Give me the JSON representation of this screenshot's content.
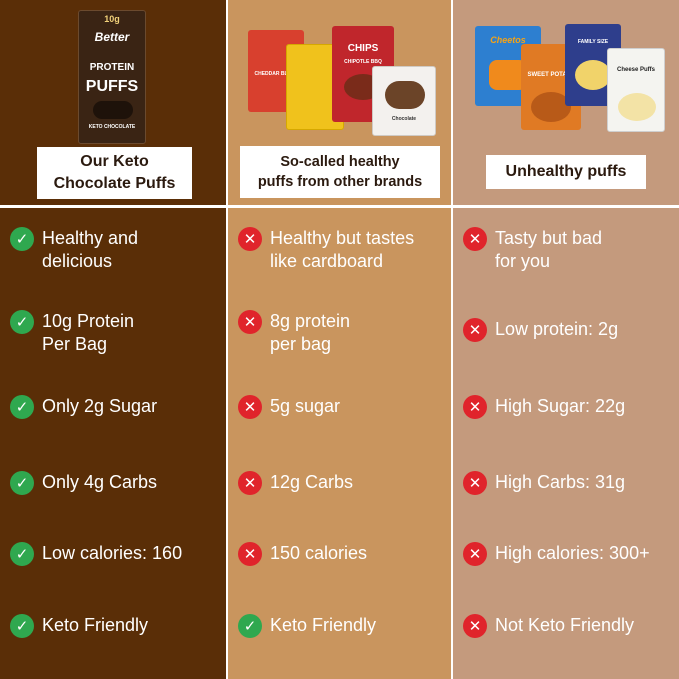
{
  "columns": [
    {
      "heading": "Our Keto\nChocolate Puffs",
      "package": {
        "brand": "Better",
        "badge": "10g",
        "line1": "PROTEIN",
        "line2": "PUFFS",
        "flavor": "KETO CHOCOLATE",
        "color": "#3a2414"
      },
      "rows": [
        {
          "status": "check",
          "text": "Healthy and\ndelicious"
        },
        {
          "status": "check",
          "text": "10g Protein\nPer Bag"
        },
        {
          "status": "check",
          "text": "Only 2g Sugar"
        },
        {
          "status": "check",
          "text": "Only 4g Carbs"
        },
        {
          "status": "check",
          "text": "Low calories: 160"
        },
        {
          "status": "check",
          "text": "Keto Friendly"
        }
      ]
    },
    {
      "heading": "So-called healthy\npuffs from other brands",
      "package_labels": {
        "a": "CHEDDAR BLAST",
        "b": "CHIPS",
        "c": "CHIPOTLE BBQ",
        "d": "Chocolate"
      },
      "rows": [
        {
          "status": "cross",
          "text": "Healthy but tastes\nlike cardboard"
        },
        {
          "status": "cross",
          "text": "8g protein\nper bag"
        },
        {
          "status": "cross",
          "text": "5g sugar"
        },
        {
          "status": "cross",
          "text": "12g Carbs"
        },
        {
          "status": "cross",
          "text": "150 calories"
        },
        {
          "status": "check",
          "text": "Keto Friendly"
        }
      ]
    },
    {
      "heading": "Unhealthy puffs",
      "package_labels": {
        "a": "Cheetos",
        "b": "SWEET POTATO",
        "c": "FAMILY SIZE",
        "d": "Cheese\nPuffs"
      },
      "rows": [
        {
          "status": "cross",
          "text": "Tasty but bad\nfor you"
        },
        {
          "status": "cross",
          "text": "Low protein: 2g"
        },
        {
          "status": "cross",
          "text": "High Sugar: 22g"
        },
        {
          "status": "cross",
          "text": "High Carbs: 31g"
        },
        {
          "status": "cross",
          "text": "High calories: 300+"
        },
        {
          "status": "cross",
          "text": "Not Keto Friendly"
        }
      ]
    }
  ],
  "icons": {
    "check": "check-icon",
    "cross": "cross-icon"
  },
  "colors": {
    "check": "#2fa84f",
    "cross": "#e0242b",
    "col1": "#5a2e07",
    "col2": "#c9955e",
    "col3": "#c49a7d"
  }
}
